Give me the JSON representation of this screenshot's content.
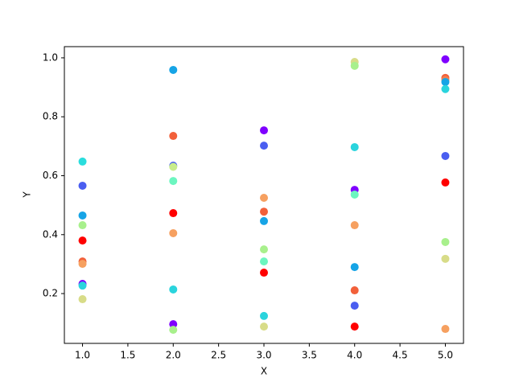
{
  "chart_data": {
    "type": "scatter",
    "x_label": "X",
    "y_label": "Y",
    "x": [
      1,
      1,
      1,
      1,
      1,
      1,
      1,
      1,
      1,
      1,
      2,
      2,
      2,
      2,
      2,
      2,
      2,
      2,
      2,
      2,
      3,
      3,
      3,
      3,
      3,
      3,
      3,
      3,
      3,
      3,
      4,
      4,
      4,
      4,
      4,
      4,
      4,
      4,
      4,
      4,
      5,
      5,
      5,
      5,
      5,
      5,
      5,
      5,
      5,
      5
    ],
    "y": [
      0.648,
      0.566,
      0.465,
      0.432,
      0.38,
      0.309,
      0.301,
      0.233,
      0.227,
      0.181,
      0.959,
      0.735,
      0.634,
      0.63,
      0.582,
      0.473,
      0.405,
      0.214,
      0.096,
      0.077,
      0.754,
      0.702,
      0.525,
      0.478,
      0.446,
      0.35,
      0.309,
      0.271,
      0.124,
      0.088,
      0.986,
      0.973,
      0.697,
      0.552,
      0.536,
      0.432,
      0.29,
      0.211,
      0.159,
      0.088,
      0.995,
      0.932,
      0.925,
      0.918,
      0.894,
      0.667,
      0.577,
      0.375,
      0.318,
      0.08
    ],
    "colors": [
      "#2adddd",
      "#4a5ef0",
      "#16a4e6",
      "#a8f08c",
      "#ff0000",
      "#f2603a",
      "#f6a060",
      "#7f00ff",
      "#2ad4dd",
      "#d8dc88",
      "#16a4e6",
      "#f2603a",
      "#4a5ef0",
      "#c8ec8c",
      "#6cf6c0",
      "#ff0000",
      "#f6a060",
      "#2ad4dd",
      "#7f00ff",
      "#a8f08c",
      "#7f00ff",
      "#4a5ef0",
      "#f6a060",
      "#f2603a",
      "#16a4e6",
      "#a8f08c",
      "#6cf6c0",
      "#ff0000",
      "#2ad4dd",
      "#d8dc88",
      "#d8dc88",
      "#a8f08c",
      "#2ad4dd",
      "#7f00ff",
      "#6cf6c0",
      "#f6a060",
      "#16a4e6",
      "#f2603a",
      "#4a5ef0",
      "#ff0000",
      "#7f00ff",
      "#f2603a",
      "#f08050",
      "#16a4e6",
      "#2ad4dd",
      "#4a5ef0",
      "#ff0000",
      "#a8f08c",
      "#d8dc88",
      "#f6a060"
    ],
    "xlim": [
      0.8,
      5.2
    ],
    "ylim": [
      0.031,
      1.038
    ],
    "xticks": [
      {
        "value": 1,
        "label": "1.0"
      },
      {
        "value": 1.5,
        "label": "1.5"
      },
      {
        "value": 2,
        "label": "2.0"
      },
      {
        "value": 2.5,
        "label": "2.5"
      },
      {
        "value": 3,
        "label": "3.0"
      },
      {
        "value": 3.5,
        "label": "3.5"
      },
      {
        "value": 4,
        "label": "4.0"
      },
      {
        "value": 4.5,
        "label": "4.5"
      },
      {
        "value": 5,
        "label": "5.0"
      }
    ],
    "yticks": [
      {
        "value": 0.2,
        "label": "0.2"
      },
      {
        "value": 0.4,
        "label": "0.4"
      },
      {
        "value": 0.6,
        "label": "0.6"
      },
      {
        "value": 0.8,
        "label": "0.8"
      },
      {
        "value": 1,
        "label": "1.0"
      }
    ]
  }
}
